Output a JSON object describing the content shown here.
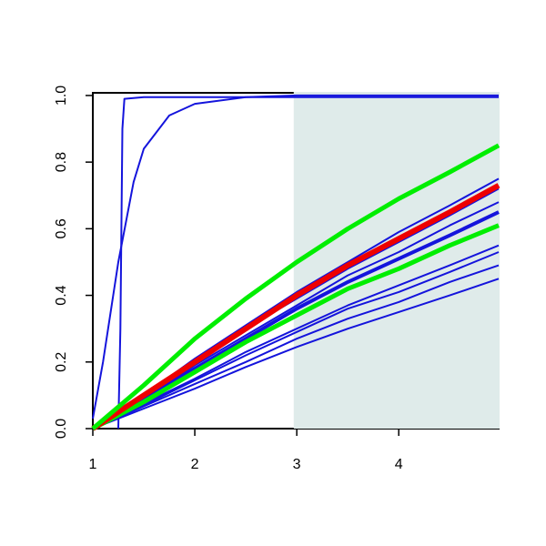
{
  "chart_data": {
    "type": "line",
    "xlim": [
      1,
      4.98
    ],
    "ylim": [
      0,
      1.008
    ],
    "xticks": [
      1,
      2,
      3,
      4
    ],
    "yticks": [
      {
        "value": 0,
        "label": "0.0"
      },
      0.2,
      0.4,
      0.6,
      0.8,
      {
        "value": 1,
        "label": "1.0"
      }
    ],
    "shaded_region": {
      "xlim": [
        2.97,
        4.98
      ],
      "color": "#dfebea"
    },
    "x": [
      1,
      1.5,
      2,
      2.5,
      3,
      3.5,
      4,
      4.5,
      4.98
    ],
    "series": [
      {
        "color": "#1414dc",
        "lwd": 2,
        "x": [
          1.25,
          1.27,
          1.29,
          1.31,
          1.5,
          4.98
        ],
        "values": [
          0,
          0.3,
          0.9,
          0.99,
          0.995,
          0.995
        ]
      },
      {
        "color": "#1414dc",
        "lwd": 2,
        "x": [
          1,
          1.1,
          1.25,
          1.4,
          1.5,
          1.75,
          2,
          2.5,
          3,
          4.98
        ],
        "values": [
          0.03,
          0.2,
          0.5,
          0.74,
          0.84,
          0.94,
          0.975,
          0.995,
          1,
          1
        ]
      },
      {
        "color": "#1414dc",
        "lwd": 2,
        "values": [
          0,
          0.1,
          0.21,
          0.31,
          0.41,
          0.5,
          0.59,
          0.67,
          0.75
        ]
      },
      {
        "color": "#1414dc",
        "lwd": 2,
        "values": [
          0,
          0.1,
          0.2,
          0.3,
          0.39,
          0.48,
          0.56,
          0.64,
          0.72
        ]
      },
      {
        "color": "#1414dc",
        "lwd": 2,
        "values": [
          0,
          0.09,
          0.19,
          0.28,
          0.37,
          0.46,
          0.53,
          0.61,
          0.68
        ]
      },
      {
        "color": "#1414dc",
        "lwd": 4,
        "values": [
          0,
          0.09,
          0.18,
          0.27,
          0.36,
          0.44,
          0.51,
          0.58,
          0.65
        ]
      },
      {
        "color": "#1414dc",
        "lwd": 2,
        "values": [
          0,
          0.075,
          0.15,
          0.23,
          0.3,
          0.37,
          0.43,
          0.49,
          0.55
        ]
      },
      {
        "color": "#1414dc",
        "lwd": 2,
        "values": [
          0,
          0.07,
          0.145,
          0.22,
          0.29,
          0.36,
          0.41,
          0.47,
          0.53
        ]
      },
      {
        "color": "#1414dc",
        "lwd": 2,
        "values": [
          0,
          0.067,
          0.134,
          0.2,
          0.27,
          0.33,
          0.38,
          0.44,
          0.49
        ]
      },
      {
        "color": "#1414dc",
        "lwd": 2,
        "values": [
          0,
          0.06,
          0.12,
          0.185,
          0.245,
          0.3,
          0.35,
          0.4,
          0.45
        ]
      },
      {
        "color": "#00ee00",
        "lwd": 5,
        "values": [
          0,
          0.08,
          0.17,
          0.26,
          0.34,
          0.42,
          0.48,
          0.55,
          0.61
        ]
      },
      {
        "color": "#ee0000",
        "lwd": 6,
        "values": [
          0,
          0.1,
          0.2,
          0.3,
          0.4,
          0.49,
          0.57,
          0.65,
          0.73
        ]
      },
      {
        "color": "#00ee00",
        "lwd": 5,
        "values": [
          0,
          0.13,
          0.27,
          0.39,
          0.5,
          0.6,
          0.69,
          0.77,
          0.85
        ]
      }
    ]
  }
}
